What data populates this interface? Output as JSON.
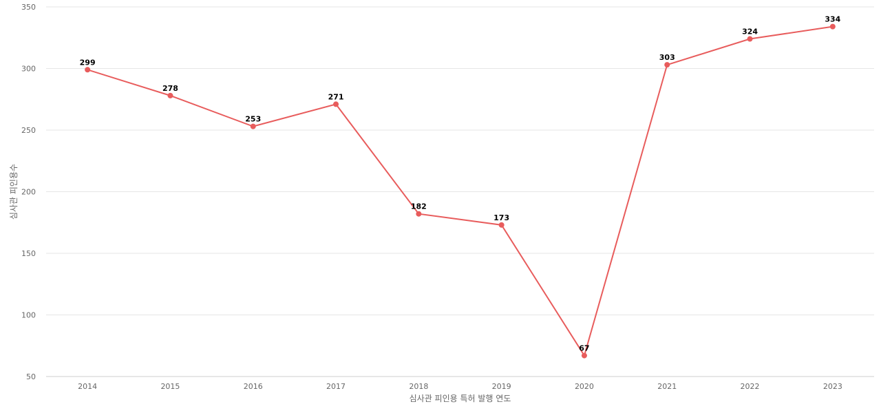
{
  "chart_data": {
    "type": "line",
    "title": "",
    "xlabel": "심사관 피인용 특허 발행 연도",
    "ylabel": "심사관 피인용수",
    "categories": [
      "2014",
      "2015",
      "2016",
      "2017",
      "2018",
      "2019",
      "2020",
      "2021",
      "2022",
      "2023"
    ],
    "series": [
      {
        "values": [
          299,
          278,
          253,
          271,
          182,
          173,
          67,
          303,
          324,
          334
        ]
      }
    ],
    "ylim": [
      50,
      350
    ],
    "yticks": [
      50,
      100,
      150,
      200,
      250,
      300,
      350
    ],
    "grid": true,
    "legend": "none",
    "colors": {
      "series": "#e85c5c"
    }
  }
}
